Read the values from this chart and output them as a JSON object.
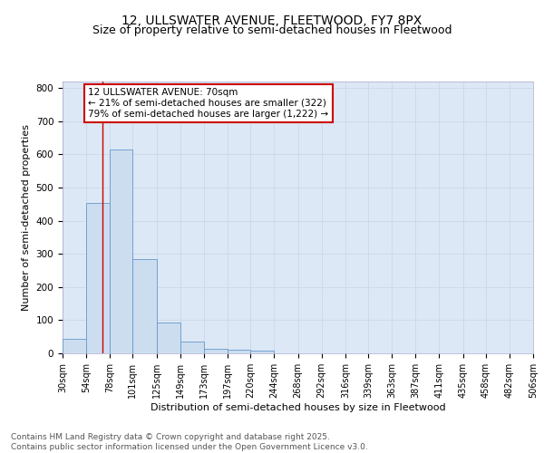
{
  "title1": "12, ULLSWATER AVENUE, FLEETWOOD, FY7 8PX",
  "title2": "Size of property relative to semi-detached houses in Fleetwood",
  "xlabel": "Distribution of semi-detached houses by size in Fleetwood",
  "ylabel": "Number of semi-detached properties",
  "bar_left_edges": [
    30,
    54,
    78,
    101,
    125,
    149,
    173,
    197,
    220,
    244,
    268,
    292,
    316,
    339,
    363,
    387,
    411,
    435,
    458,
    482
  ],
  "bar_widths": [
    24,
    24,
    23,
    24,
    24,
    24,
    24,
    23,
    24,
    24,
    24,
    24,
    23,
    24,
    24,
    24,
    24,
    23,
    24,
    24
  ],
  "bar_heights": [
    43,
    455,
    615,
    285,
    93,
    35,
    15,
    10,
    7,
    0,
    0,
    0,
    0,
    0,
    0,
    0,
    0,
    0,
    0,
    0
  ],
  "bar_color": "#ccddf0",
  "bar_edge_color": "#6699cc",
  "tick_labels": [
    "30sqm",
    "54sqm",
    "78sqm",
    "101sqm",
    "125sqm",
    "149sqm",
    "173sqm",
    "197sqm",
    "220sqm",
    "244sqm",
    "268sqm",
    "292sqm",
    "316sqm",
    "339sqm",
    "363sqm",
    "387sqm",
    "411sqm",
    "435sqm",
    "458sqm",
    "482sqm",
    "506sqm"
  ],
  "ylim": [
    0,
    820
  ],
  "yticks": [
    0,
    100,
    200,
    300,
    400,
    500,
    600,
    700,
    800
  ],
  "property_size": 70,
  "property_line_color": "#cc0000",
  "annotation_text": "12 ULLSWATER AVENUE: 70sqm",
  "annotation_line2": "← 21% of semi-detached houses are smaller (322)",
  "annotation_line3": "79% of semi-detached houses are larger (1,222) →",
  "annotation_box_color": "#cc0000",
  "grid_color": "#c8d4e8",
  "bg_color": "#dce8f5",
  "footnote": "Contains HM Land Registry data © Crown copyright and database right 2025.\nContains public sector information licensed under the Open Government Licence v3.0.",
  "title1_fontsize": 10,
  "title2_fontsize": 9,
  "axis_fontsize": 8,
  "tick_fontsize": 7,
  "annotation_fontsize": 7.5,
  "footnote_fontsize": 6.5
}
